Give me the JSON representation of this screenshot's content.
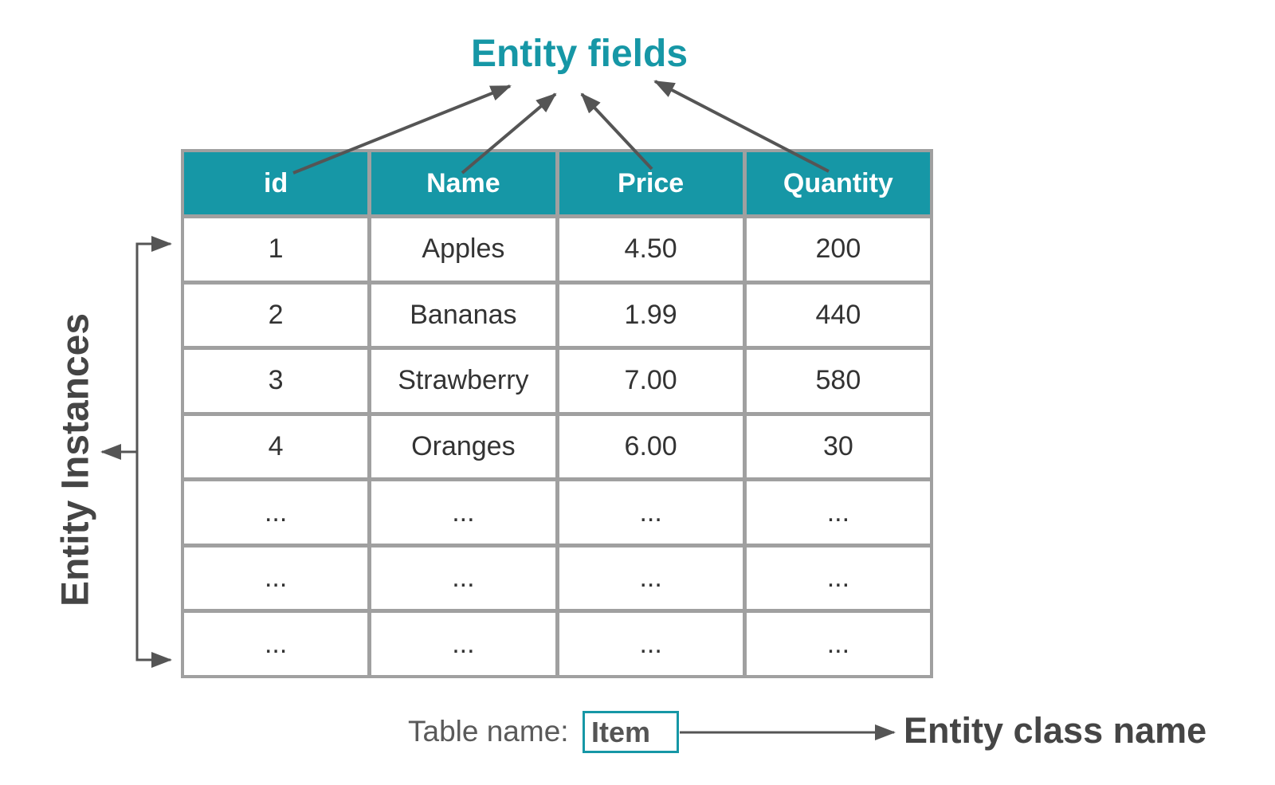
{
  "title": "Entity fields",
  "side_label": "Entity Instances",
  "colors": {
    "accent": "#1697a6",
    "border": "#a0a0a0",
    "arrow": "#555555"
  },
  "table": {
    "headers": [
      "id",
      "Name",
      "Price",
      "Quantity"
    ],
    "rows": [
      [
        "1",
        "Apples",
        "4.50",
        "200"
      ],
      [
        "2",
        "Bananas",
        "1.99",
        "440"
      ],
      [
        "3",
        "Strawberry",
        "7.00",
        "580"
      ],
      [
        "4",
        "Oranges",
        "6.00",
        "30"
      ],
      [
        "...",
        "...",
        "...",
        "..."
      ],
      [
        "...",
        "...",
        "...",
        "..."
      ],
      [
        "...",
        "...",
        "...",
        "..."
      ]
    ]
  },
  "table_name_label": "Table name:",
  "table_name_value": "Item",
  "class_name_label": "Entity class name"
}
